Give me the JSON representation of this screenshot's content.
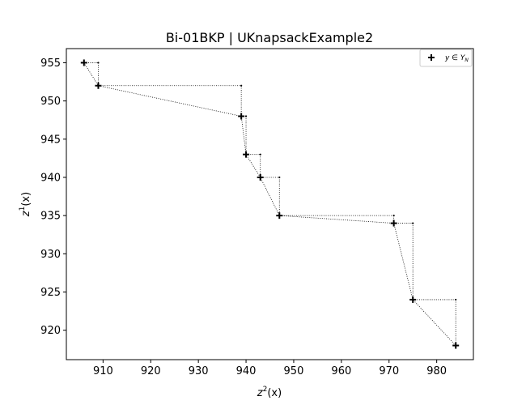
{
  "chart_data": {
    "type": "scatter",
    "title": "Bi-01BKP | UKnapsackExample2",
    "xlabel_base": "z",
    "xlabel_sup": "2",
    "xlabel_tail": "(x)",
    "ylabel_base": "z",
    "ylabel_sup": "1",
    "ylabel_tail": "(x)",
    "xlim": [
      902.3,
      987.7
    ],
    "ylim": [
      916.15,
      956.85
    ],
    "xticks": [
      910,
      920,
      930,
      940,
      950,
      960,
      970,
      980
    ],
    "yticks": [
      920,
      925,
      930,
      935,
      940,
      945,
      950,
      955
    ],
    "grid": false,
    "legend_position": "top-right",
    "series": [
      {
        "name": "y ∈ Y_N",
        "marker": "plus",
        "color": "#000000",
        "points": [
          {
            "x": 906,
            "y": 955
          },
          {
            "x": 909,
            "y": 952
          },
          {
            "x": 939,
            "y": 948
          },
          {
            "x": 940,
            "y": 943
          },
          {
            "x": 943,
            "y": 940
          },
          {
            "x": 947,
            "y": 935
          },
          {
            "x": 971,
            "y": 934
          },
          {
            "x": 975,
            "y": 924
          },
          {
            "x": 984,
            "y": 918
          }
        ]
      }
    ]
  },
  "legend": {
    "label_main": "y ∈ Y",
    "label_sub": "N"
  }
}
